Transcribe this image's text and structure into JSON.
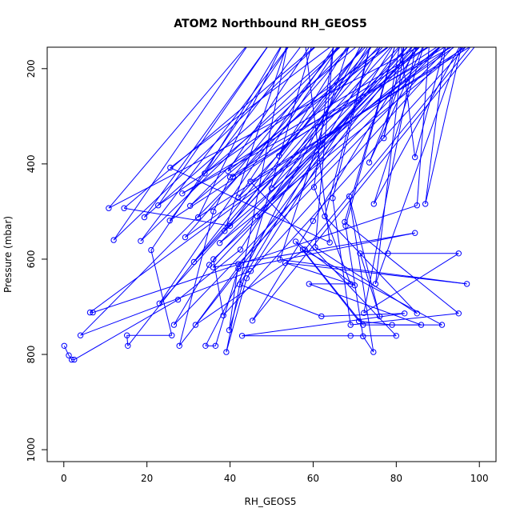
{
  "chart_data": {
    "type": "line",
    "title": "ATOM2 Northbound RH_GEOS5",
    "xlabel": "RH_GEOS5",
    "ylabel": "Pressure (mbar)",
    "xlim": [
      -4,
      104
    ],
    "ylim": [
      1025,
      155
    ],
    "y_reversed": true,
    "grid": false,
    "legend": "none",
    "color": "#0000ff",
    "x_ticks": [
      0,
      20,
      40,
      60,
      80,
      100
    ],
    "y_ticks": [
      200,
      400,
      600,
      800,
      1000
    ],
    "series": [
      {
        "points": [
          [
            0.1,
            782
          ],
          [
            1.2,
            802
          ],
          [
            1.9,
            811
          ],
          [
            2.5,
            811
          ],
          [
            27.5,
            685
          ],
          [
            42.5,
            580
          ],
          [
            74,
            142
          ],
          [
            4,
            760
          ],
          [
            45,
            625
          ],
          [
            95,
            142
          ],
          [
            6.3,
            712
          ],
          [
            7,
            712
          ],
          [
            85,
            487
          ],
          [
            88,
            142
          ],
          [
            10.8,
            493
          ],
          [
            45,
            142
          ],
          [
            12,
            560
          ],
          [
            62,
            142
          ],
          [
            14.5,
            493
          ],
          [
            40,
            530
          ],
          [
            73,
            142
          ],
          [
            15.4,
            782
          ],
          [
            15.2,
            760
          ],
          [
            26,
            760
          ],
          [
            21,
            581
          ],
          [
            55,
            142
          ],
          [
            18.5,
            562
          ],
          [
            68,
            142
          ],
          [
            19.4,
            512
          ],
          [
            50,
            142
          ],
          [
            22.7,
            487
          ],
          [
            80,
            142
          ],
          [
            23,
            693
          ],
          [
            66,
            142
          ],
          [
            25.6,
            408
          ],
          [
            64,
            565
          ],
          [
            58,
            142
          ],
          [
            25.5,
            519
          ],
          [
            92,
            142
          ],
          [
            26.5,
            738
          ],
          [
            35,
            612
          ],
          [
            85,
            142
          ],
          [
            27.8,
            782
          ],
          [
            36,
            500
          ],
          [
            40,
            428
          ],
          [
            90,
            142
          ],
          [
            28.5,
            462
          ],
          [
            96,
            142
          ],
          [
            29.2,
            554
          ],
          [
            70,
            142
          ],
          [
            30.4,
            488
          ],
          [
            78,
            142
          ],
          [
            31.3,
            606
          ],
          [
            82,
            142
          ],
          [
            31.7,
            738
          ],
          [
            58,
            580
          ],
          [
            99,
            142
          ],
          [
            32.3,
            512
          ],
          [
            53,
            142
          ],
          [
            33.9,
            420
          ],
          [
            72,
            142
          ],
          [
            34.1,
            782
          ],
          [
            36.5,
            782
          ],
          [
            42,
            620
          ],
          [
            84.5,
            545
          ],
          [
            35.9,
            617
          ],
          [
            87,
            142
          ],
          [
            37.5,
            566
          ],
          [
            98,
            142
          ],
          [
            38.4,
            718
          ],
          [
            36,
            600
          ],
          [
            92,
            142
          ],
          [
            38.7,
            541
          ],
          [
            54,
            142
          ],
          [
            39.1,
            795
          ],
          [
            44,
            640
          ],
          [
            80,
            142
          ],
          [
            39.5,
            415
          ],
          [
            60,
            142
          ],
          [
            39.8,
            749
          ],
          [
            42,
            610
          ],
          [
            94,
            142
          ],
          [
            40.7,
            427
          ],
          [
            67,
            142
          ],
          [
            42,
            471
          ],
          [
            77,
            142
          ],
          [
            42.3,
            653
          ],
          [
            62,
            720
          ],
          [
            82,
            714
          ],
          [
            42.9,
            761
          ],
          [
            69,
            761
          ],
          [
            80,
            761
          ],
          [
            44.9,
            437
          ],
          [
            100,
            142
          ],
          [
            45.4,
            729
          ],
          [
            60,
            520
          ],
          [
            86,
            142
          ],
          [
            46.5,
            510
          ],
          [
            84,
            142
          ],
          [
            50,
            451
          ],
          [
            75,
            142
          ],
          [
            51.8,
            383
          ],
          [
            69,
            142
          ],
          [
            52,
            601
          ],
          [
            97,
            652
          ],
          [
            53.3,
            608
          ],
          [
            70,
            655
          ],
          [
            55.8,
            563
          ],
          [
            71,
            730
          ],
          [
            79,
            738
          ],
          [
            91,
            738
          ],
          [
            57.5,
            580
          ],
          [
            72,
            738
          ],
          [
            86,
            738
          ],
          [
            59,
            652
          ],
          [
            69,
            652
          ],
          [
            60.2,
            449
          ],
          [
            65,
            142
          ],
          [
            60.5,
            575
          ],
          [
            85,
            714
          ],
          [
            62.8,
            510
          ],
          [
            74,
            142
          ],
          [
            64.7,
            472
          ],
          [
            69,
            738
          ],
          [
            95,
            714
          ],
          [
            67.6,
            522
          ],
          [
            80,
            142
          ],
          [
            67.8,
            530
          ],
          [
            72,
            762
          ],
          [
            74.5,
            795
          ],
          [
            68.7,
            468
          ],
          [
            76,
            720
          ],
          [
            71.3,
            588
          ],
          [
            78,
            588
          ],
          [
            95,
            588
          ],
          [
            72.2,
            713
          ],
          [
            85,
            142
          ],
          [
            73.5,
            397
          ],
          [
            87,
            142
          ],
          [
            74.6,
            484
          ],
          [
            96,
            142
          ],
          [
            75,
            652
          ],
          [
            82,
            142
          ],
          [
            77,
            346
          ],
          [
            81,
            142
          ],
          [
            84.5,
            386
          ],
          [
            92,
            142
          ],
          [
            87,
            484
          ],
          [
            96,
            142
          ]
        ]
      }
    ]
  }
}
